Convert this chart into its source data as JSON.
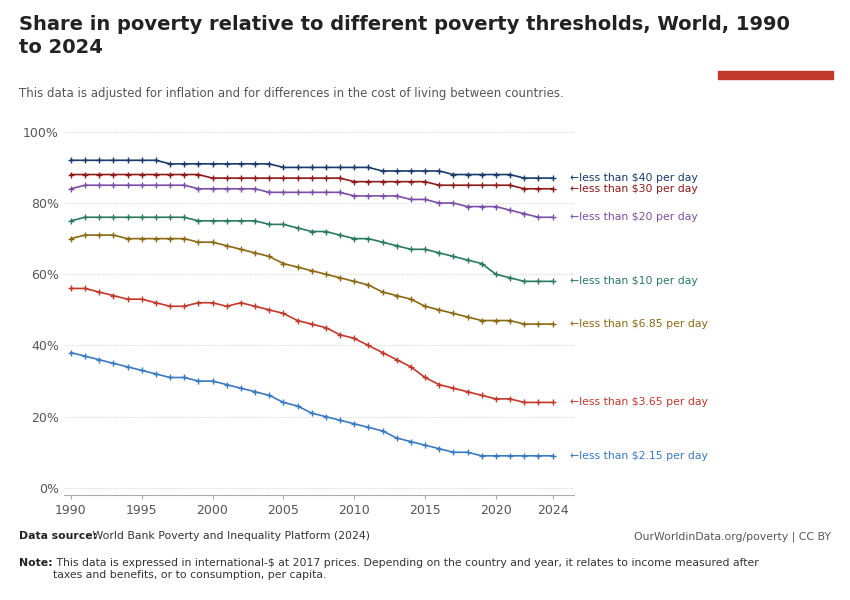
{
  "title": "Share in poverty relative to different poverty thresholds, World, 1990\nto 2024",
  "subtitle": "This data is adjusted for inflation and for differences in the cost of living between countries.",
  "datasource_bold": "Data source:",
  "datasource_rest": " World Bank Poverty and Inequality Platform (2024)",
  "note_bold": "Note:",
  "note_rest": " This data is expressed in international-$ at 2017 prices. Depending on the country and year, it relates to income measured after\ntaxes and benefits, or to consumption, per capita.",
  "owid_text": "OurWorldinData.org/poverty | CC BY",
  "years": [
    1990,
    1991,
    1992,
    1993,
    1994,
    1995,
    1996,
    1997,
    1998,
    1999,
    2000,
    2001,
    2002,
    2003,
    2004,
    2005,
    2006,
    2007,
    2008,
    2009,
    2010,
    2011,
    2012,
    2013,
    2014,
    2015,
    2016,
    2017,
    2018,
    2019,
    2020,
    2021,
    2022,
    2023,
    2024
  ],
  "series": [
    {
      "label": "less than $40 per day",
      "color": "#1a3a6b",
      "values": [
        92,
        92,
        92,
        92,
        92,
        92,
        92,
        91,
        91,
        91,
        91,
        91,
        91,
        91,
        91,
        90,
        90,
        90,
        90,
        90,
        90,
        90,
        89,
        89,
        89,
        89,
        89,
        88,
        88,
        88,
        88,
        88,
        87,
        87,
        87
      ]
    },
    {
      "label": "less than $30 per day",
      "color": "#8b1a1a",
      "values": [
        88,
        88,
        88,
        88,
        88,
        88,
        88,
        88,
        88,
        88,
        87,
        87,
        87,
        87,
        87,
        87,
        87,
        87,
        87,
        87,
        86,
        86,
        86,
        86,
        86,
        86,
        85,
        85,
        85,
        85,
        85,
        85,
        84,
        84,
        84
      ]
    },
    {
      "label": "less than $20 per day",
      "color": "#7b4fa6",
      "values": [
        84,
        85,
        85,
        85,
        85,
        85,
        85,
        85,
        85,
        84,
        84,
        84,
        84,
        84,
        83,
        83,
        83,
        83,
        83,
        83,
        82,
        82,
        82,
        82,
        81,
        81,
        80,
        80,
        79,
        79,
        79,
        78,
        77,
        76,
        76
      ]
    },
    {
      "label": "less than $10 per day",
      "color": "#2a7a5c",
      "values": [
        75,
        76,
        76,
        76,
        76,
        76,
        76,
        76,
        76,
        75,
        75,
        75,
        75,
        75,
        74,
        74,
        73,
        72,
        72,
        71,
        70,
        70,
        69,
        68,
        67,
        67,
        66,
        65,
        64,
        63,
        60,
        59,
        58,
        58,
        58
      ]
    },
    {
      "label": "less than $6.85 per day",
      "color": "#8b6914",
      "values": [
        70,
        71,
        71,
        71,
        70,
        70,
        70,
        70,
        70,
        69,
        69,
        68,
        67,
        66,
        65,
        63,
        62,
        61,
        60,
        59,
        58,
        57,
        55,
        54,
        53,
        51,
        50,
        49,
        48,
        47,
        47,
        47,
        46,
        46,
        46
      ]
    },
    {
      "label": "less than $3.65 per day",
      "color": "#c0392b",
      "values": [
        56,
        56,
        55,
        54,
        53,
        53,
        52,
        51,
        51,
        52,
        52,
        51,
        52,
        51,
        50,
        49,
        47,
        46,
        45,
        43,
        42,
        40,
        38,
        36,
        34,
        31,
        29,
        28,
        27,
        26,
        25,
        25,
        24,
        24,
        24
      ]
    },
    {
      "label": "less than $2.15 per day",
      "color": "#3a7abf",
      "values": [
        38,
        37,
        36,
        35,
        34,
        33,
        32,
        31,
        31,
        30,
        30,
        29,
        28,
        27,
        26,
        24,
        23,
        21,
        20,
        19,
        18,
        17,
        16,
        14,
        13,
        12,
        11,
        10,
        10,
        9,
        9,
        9,
        9,
        9,
        9
      ]
    }
  ],
  "yticks": [
    0,
    20,
    40,
    60,
    80,
    100
  ],
  "xticks": [
    1990,
    1995,
    2000,
    2005,
    2010,
    2015,
    2020,
    2024
  ],
  "ylim": [
    -2,
    105
  ],
  "xlim": [
    1989.5,
    2025.5
  ],
  "bg_color": "#ffffff",
  "grid_color": "#cccccc",
  "owid_box_color": "#1a3a6b",
  "owid_box_red": "#c0392b"
}
